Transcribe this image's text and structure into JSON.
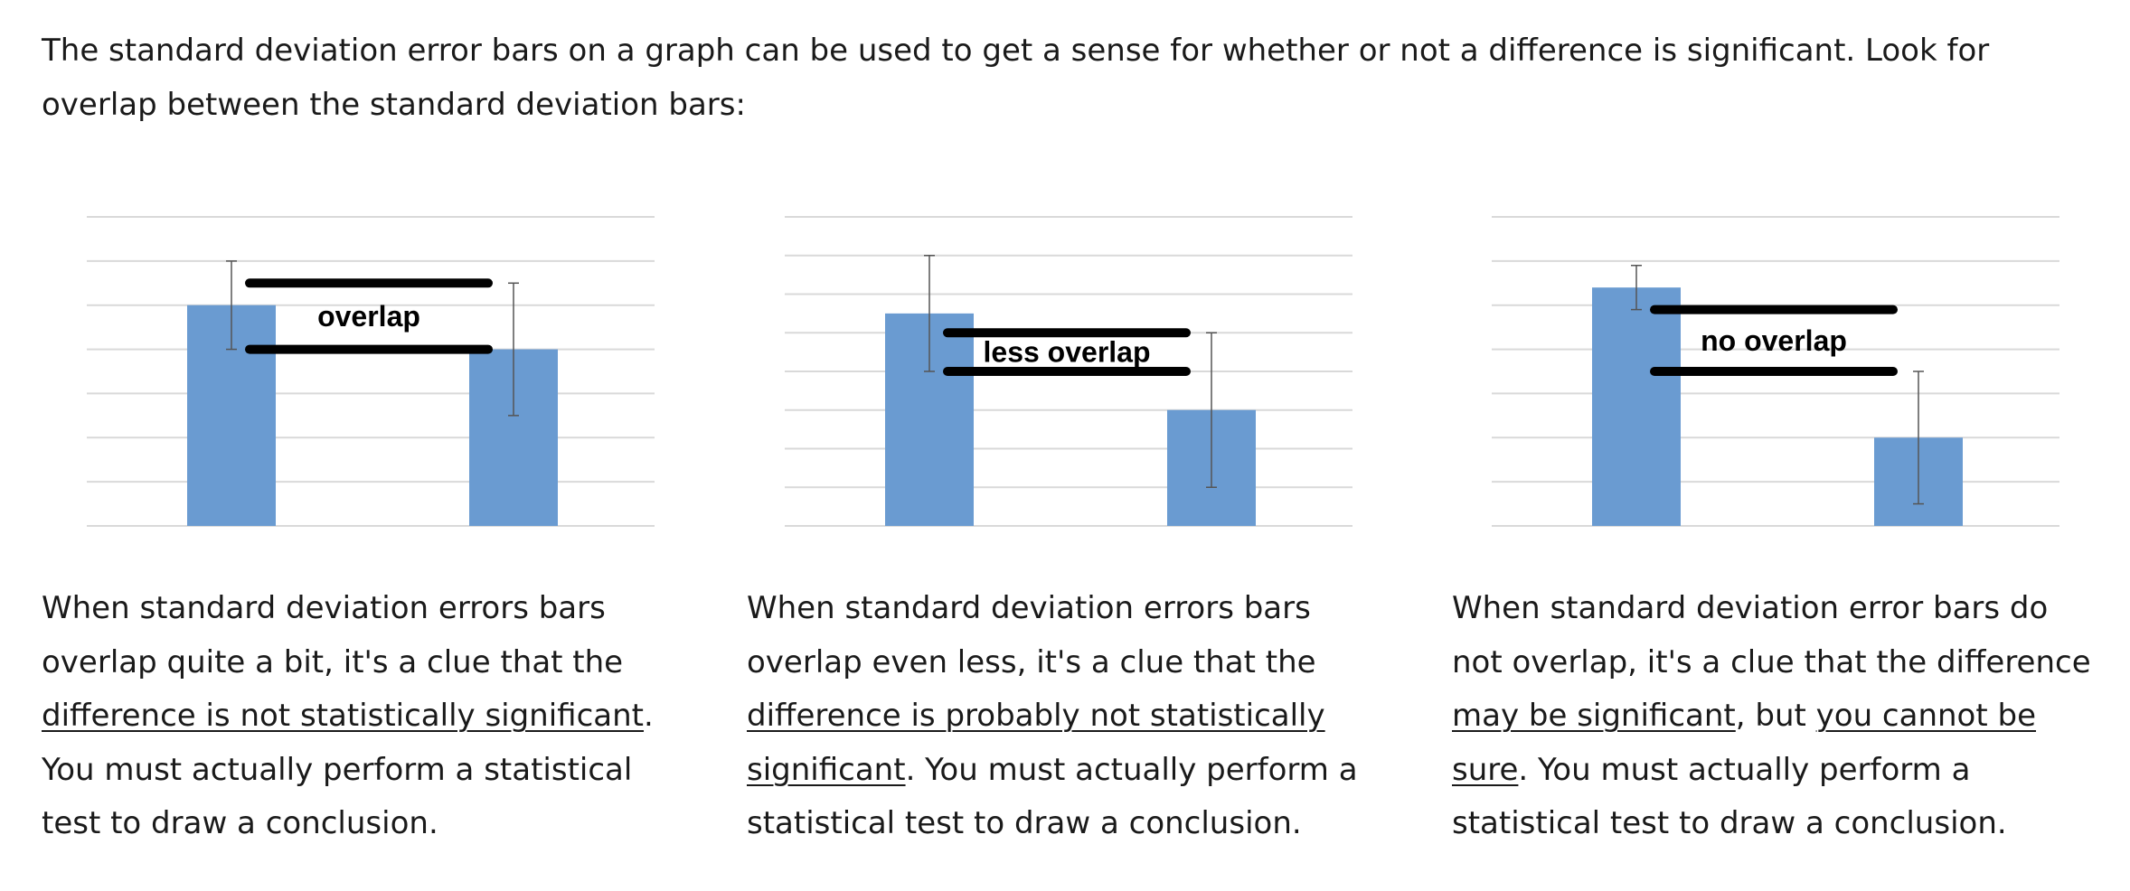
{
  "intro": "The standard deviation error bars on a graph can be used to get a sense for whether or not a difference is significant.  Look for overlap between the standard deviation bars:",
  "bar_color": "#6a9bd1",
  "grid_color": "#d9d9d9",
  "chart_data": [
    {
      "type": "bar",
      "values": [
        5,
        4
      ],
      "error": [
        1,
        1.5
      ],
      "ylim": [
        0,
        7
      ],
      "grid": true,
      "annotation": "overlap",
      "overlap_lines": [
        5.5,
        4
      ]
    },
    {
      "type": "bar",
      "values": [
        5.5,
        3
      ],
      "error": [
        1.5,
        2
      ],
      "ylim": [
        0,
        8
      ],
      "grid": true,
      "annotation": "less overlap",
      "overlap_lines": [
        5,
        4
      ]
    },
    {
      "type": "bar",
      "values": [
        5.4,
        2
      ],
      "error": [
        0.5,
        1.5
      ],
      "ylim": [
        0,
        7
      ],
      "grid": true,
      "annotation": "no overlap",
      "overlap_lines": [
        4.9,
        3.5
      ]
    }
  ],
  "captions": [
    [
      {
        "t": "When standard deviation errors bars overlap quite a bit, it's a clue that the ",
        "u": false
      },
      {
        "t": "difference is not statistically significant",
        "u": true
      },
      {
        "t": ".  You must actually perform a statistical test to draw a conclusion.",
        "u": false
      }
    ],
    [
      {
        "t": "When standard deviation errors bars overlap even less, it's a clue that the ",
        "u": false
      },
      {
        "t": "difference is probably not statistically significant",
        "u": true
      },
      {
        "t": ".  You must actually perform a statistical test to draw a conclusion.",
        "u": false
      }
    ],
    [
      {
        "t": "When standard deviation error bars do not overlap, it's a clue that the difference ",
        "u": false
      },
      {
        "t": "may be significant",
        "u": true
      },
      {
        "t": ", but ",
        "u": false
      },
      {
        "t": "you cannot be sure",
        "u": true
      },
      {
        "t": ".  You must actually perform a statistical test to draw a conclusion.",
        "u": false
      }
    ]
  ]
}
